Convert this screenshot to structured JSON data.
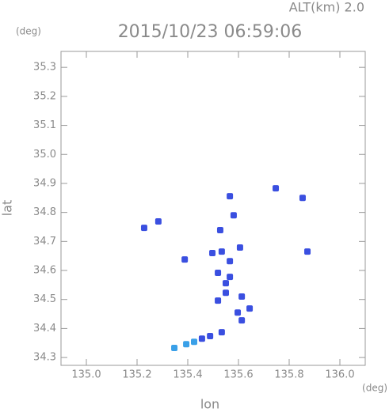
{
  "chart_data": {
    "type": "scatter",
    "altitude_label": "ALT(km) 2.0",
    "title": "2015/10/23 06:59:06",
    "y_unit": "(deg)",
    "x_unit": "(deg)",
    "xlabel": "lon",
    "ylabel": "lat",
    "xlim": [
      134.9,
      136.1
    ],
    "ylim": [
      34.273,
      35.355
    ],
    "xticks": [
      {
        "value": 135,
        "label": "135.0"
      },
      135.2,
      135.4,
      135.6,
      135.8,
      {
        "value": 136,
        "label": "136.0"
      }
    ],
    "yticks": [
      34.3,
      34.4,
      34.5,
      34.6,
      34.7,
      34.8,
      34.9,
      {
        "value": 35,
        "label": "35.0"
      },
      35.1,
      35.2,
      35.3
    ],
    "series": [
      {
        "color": "#3a4fe0",
        "x": [
          135.228,
          135.284,
          135.388,
          135.528,
          135.581,
          135.566,
          135.747,
          135.853,
          135.872,
          135.497,
          135.534,
          135.606,
          135.566,
          135.519,
          135.55,
          135.519,
          135.55,
          135.613,
          135.644,
          135.613,
          135.534,
          135.488,
          135.456,
          135.597,
          135.566
        ],
        "values": [
          34.747,
          34.769,
          34.638,
          34.739,
          34.79,
          34.856,
          34.883,
          34.85,
          34.665,
          34.66,
          34.665,
          34.679,
          34.632,
          34.592,
          34.556,
          34.496,
          34.523,
          34.51,
          34.469,
          34.428,
          34.387,
          34.374,
          34.365,
          34.455,
          34.578
        ]
      },
      {
        "color": "#3aa0e8",
        "x": [
          135.425,
          135.394,
          135.347
        ],
        "values": [
          34.354,
          34.346,
          34.333
        ]
      }
    ]
  }
}
